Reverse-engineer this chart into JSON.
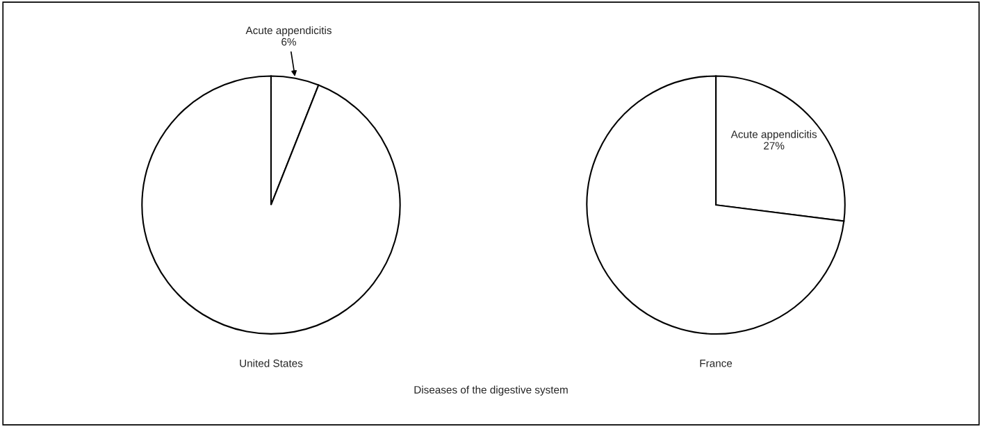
{
  "chart_data": [
    {
      "type": "pie",
      "title": "United States",
      "categories": [
        "Acute appendicitis",
        null
      ],
      "values": [
        6,
        94
      ],
      "colors": [
        "#ffffff",
        "#ffffff"
      ],
      "value_labels": [
        "6%",
        null
      ],
      "annotations": [
        "Diseases of the digestive system"
      ]
    },
    {
      "type": "pie",
      "title": "France",
      "categories": [
        "Acute appendicitis",
        null
      ],
      "values": [
        27,
        73
      ],
      "colors": [
        "#ffffff",
        "#ffffff"
      ],
      "value_labels": [
        "27%",
        null
      ]
    }
  ]
}
